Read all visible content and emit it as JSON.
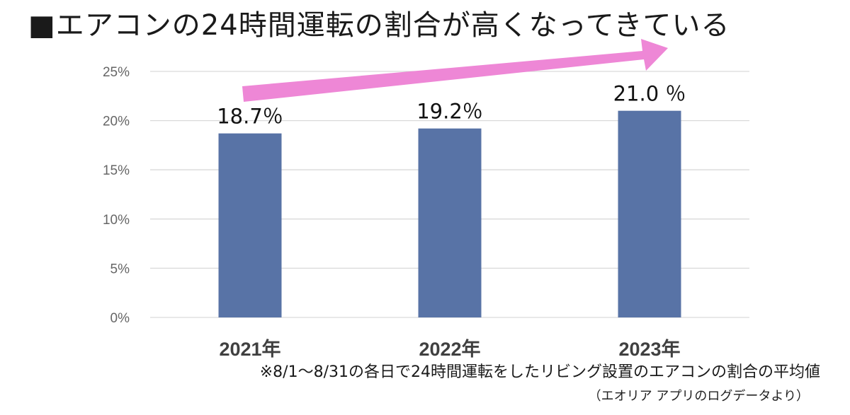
{
  "title": "■エアコンの24時間運転の割合が高くなってきている",
  "footnote": "※8/1〜8/31の各日で24時間運転をしたリビング設置のエアコンの割合の平均値",
  "source": "（エオリア アプリのログデータより）",
  "colors": {
    "bar": "#5873a6",
    "arrow": "#ee87d6",
    "grid": "#d9d9d9"
  },
  "chart_data": {
    "type": "bar",
    "title": "",
    "xlabel": "",
    "ylabel": "",
    "categories": [
      "2021年",
      "2022年",
      "2023年"
    ],
    "values": [
      18.7,
      19.2,
      21.0
    ],
    "data_labels": [
      "18.7％",
      "19.2％",
      "21.0 ％"
    ],
    "ylim": [
      0,
      25
    ],
    "yticks": [
      0,
      5,
      10,
      15,
      20,
      25
    ],
    "ytick_labels": [
      "0%",
      "5%",
      "10%",
      "15%",
      "20%",
      "25%"
    ],
    "grid": true,
    "legend": "none",
    "annotation": "upward-trend-arrow"
  }
}
